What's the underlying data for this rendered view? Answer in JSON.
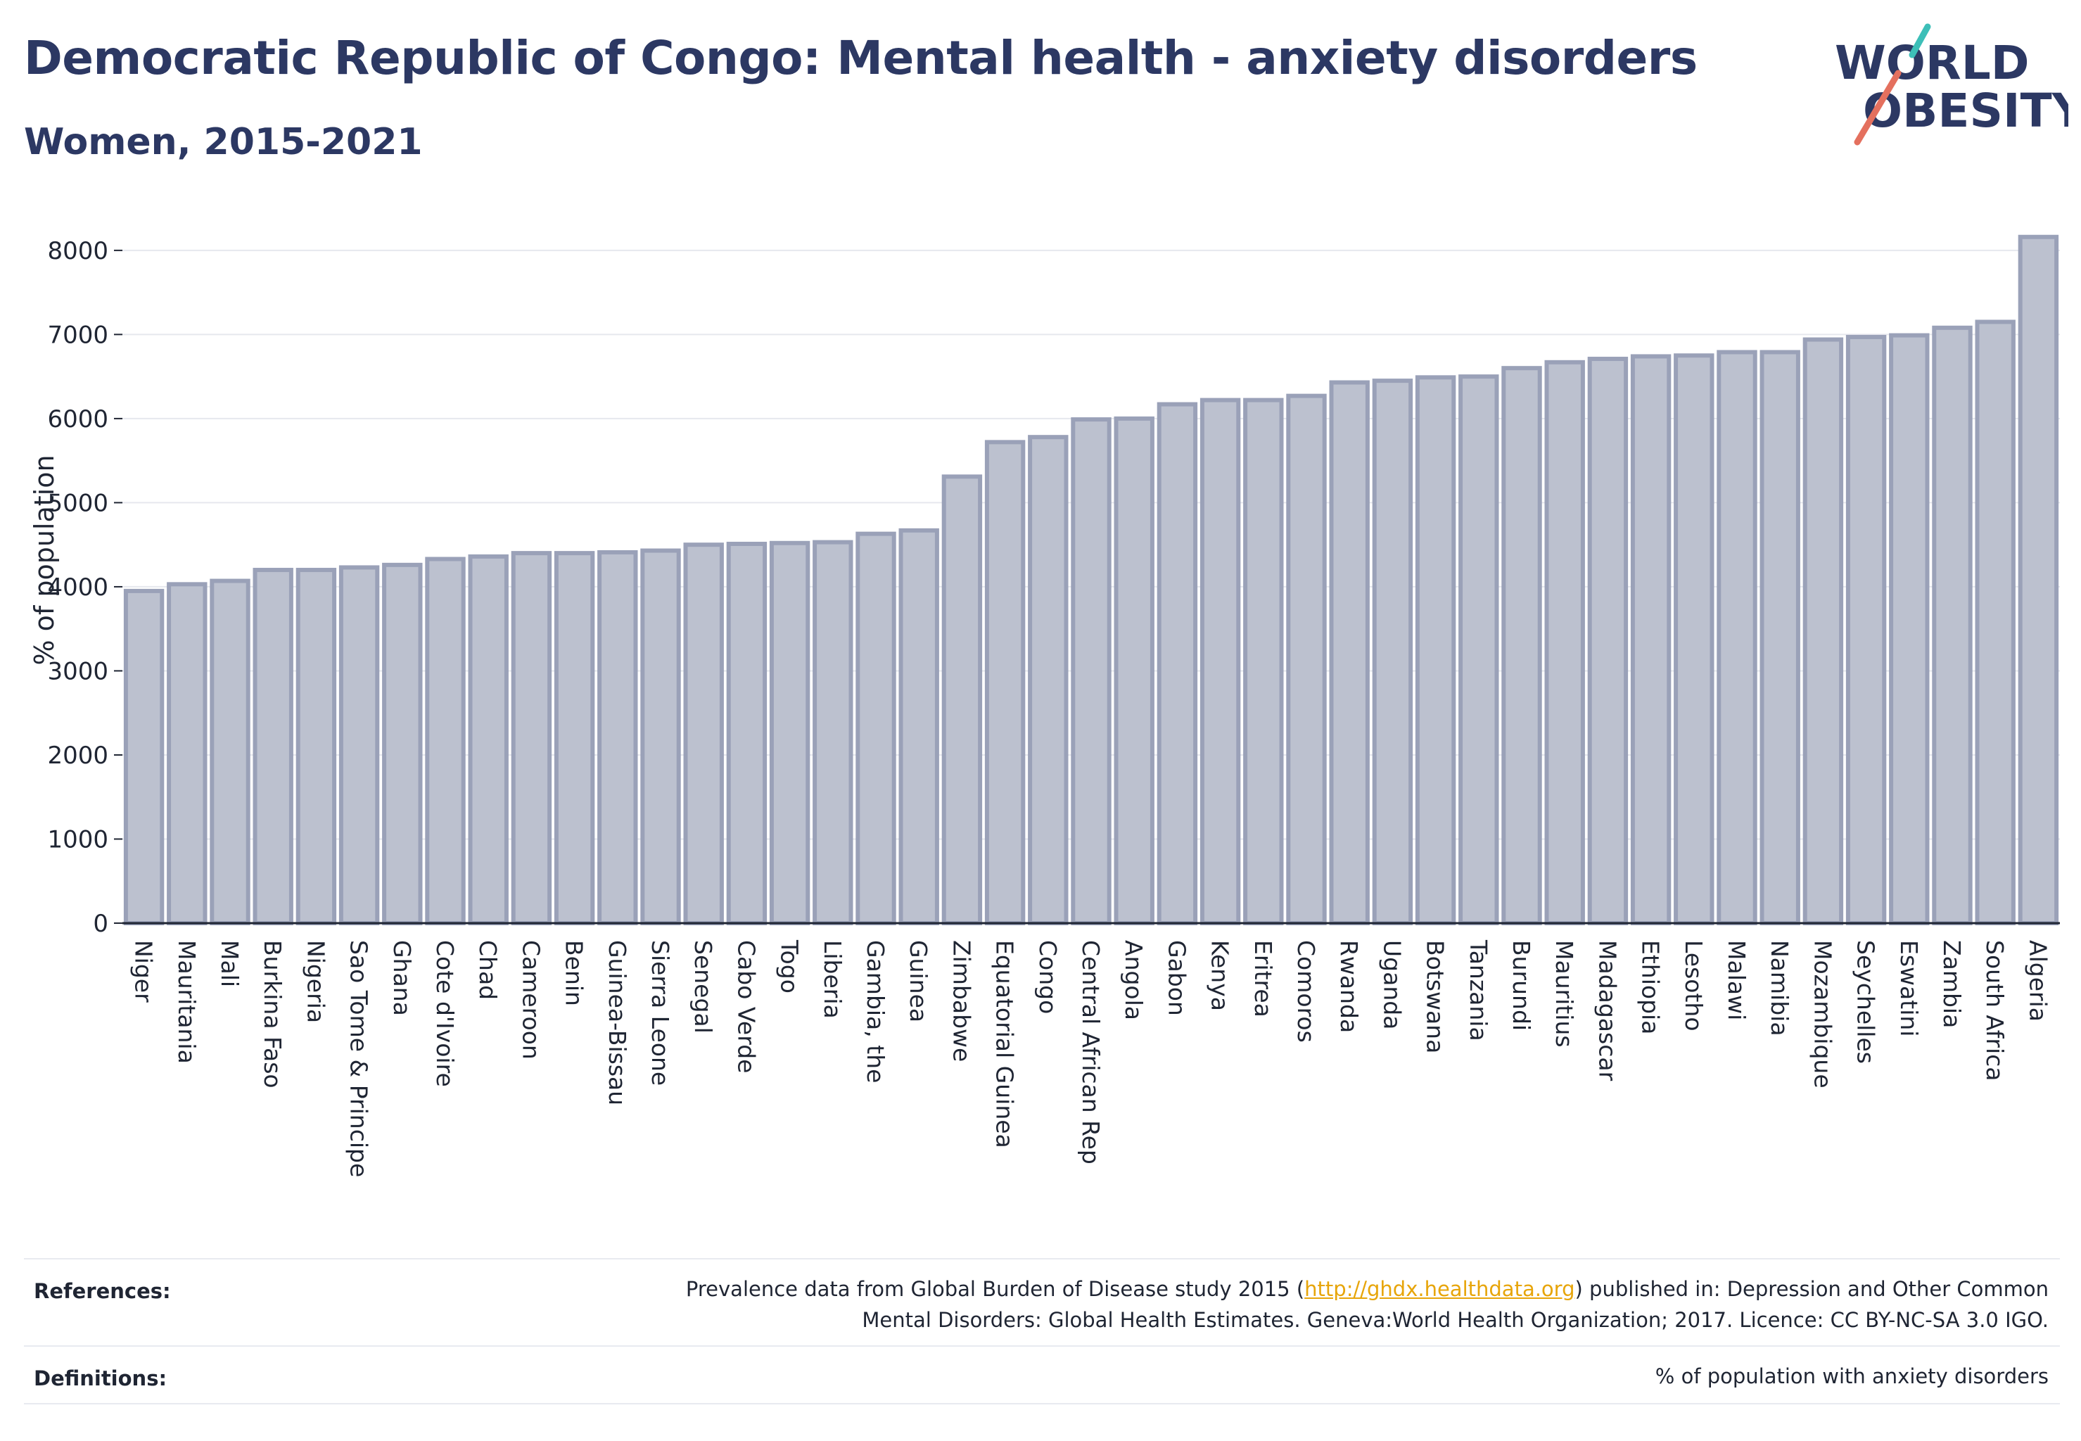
{
  "header": {
    "title": "Democratic Republic of Congo: Mental health - anxiety disorders",
    "subtitle": "Women, 2015-2021"
  },
  "logo": {
    "line1": "WORLD",
    "line2": "OBESITY"
  },
  "colors": {
    "bar_fill": "#bcc1cf",
    "bar_stroke": "#9aa1b8",
    "title": "#2c3863",
    "link": "#e7a50a",
    "logo_teal": "#3dbfb8",
    "logo_coral": "#e4705e"
  },
  "chart_data": {
    "type": "bar",
    "ylabel": "% of population",
    "xlabel": "",
    "ylim": [
      0,
      8300
    ],
    "yticks": [
      0,
      1000,
      2000,
      3000,
      4000,
      5000,
      6000,
      7000,
      8000
    ],
    "grid": true,
    "categories": [
      "Niger",
      "Mauritania",
      "Mali",
      "Burkina Faso",
      "Nigeria",
      "Sao Tome & Principe",
      "Ghana",
      "Cote d'Ivoire",
      "Chad",
      "Cameroon",
      "Benin",
      "Guinea-Bissau",
      "Sierra Leone",
      "Senegal",
      "Cabo Verde",
      "Togo",
      "Liberia",
      "Gambia, the",
      "Guinea",
      "Zimbabwe",
      "Equatorial Guinea",
      "Congo",
      "Central African Rep",
      "Angola",
      "Gabon",
      "Kenya",
      "Eritrea",
      "Comoros",
      "Rwanda",
      "Uganda",
      "Botswana",
      "Tanzania",
      "Burundi",
      "Mauritius",
      "Madagascar",
      "Ethiopia",
      "Lesotho",
      "Malawi",
      "Namibia",
      "Mozambique",
      "Seychelles",
      "Eswatini",
      "Zambia",
      "South Africa",
      "Algeria"
    ],
    "values": [
      3950,
      4030,
      4070,
      4200,
      4200,
      4230,
      4260,
      4330,
      4360,
      4400,
      4400,
      4410,
      4430,
      4500,
      4510,
      4520,
      4530,
      4630,
      4670,
      5310,
      5720,
      5780,
      5990,
      6000,
      6170,
      6220,
      6220,
      6270,
      6430,
      6450,
      6490,
      6500,
      6600,
      6670,
      6710,
      6740,
      6750,
      6790,
      6790,
      6940,
      6970,
      6990,
      7080,
      7150,
      8160
    ]
  },
  "footer": {
    "references_label": "References:",
    "references_text_before": "Prevalence data from Global Burden of Disease study 2015 (",
    "references_link": "http://ghdx.healthdata.org",
    "references_text_after": ") published in: Depression and Other Common",
    "references_line2": "Mental Disorders: Global Health Estimates. Geneva:World Health Organization; 2017. Licence: CC BY-NC-SA 3.0 IGO.",
    "definitions_label": "Definitions:",
    "definitions_text": "% of population with anxiety disorders"
  }
}
